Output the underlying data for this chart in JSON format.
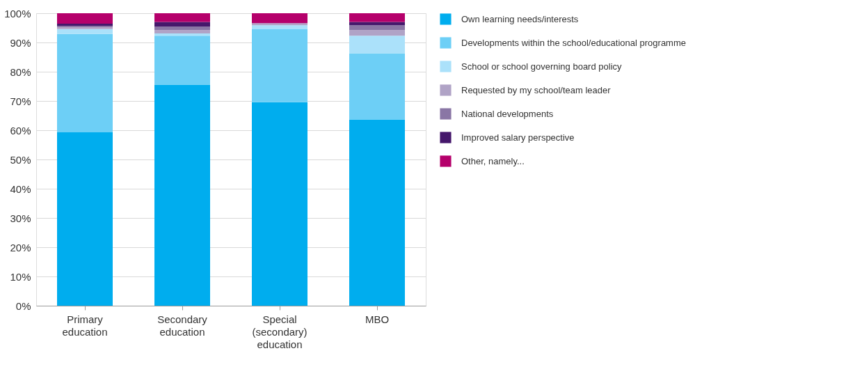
{
  "chart_data": {
    "type": "bar",
    "stacked": true,
    "categories": [
      "Primary education",
      "Secondary education",
      "Special (secondary) education",
      "MBO"
    ],
    "series": [
      {
        "name": "Own learning needs/interests",
        "color": "#00adee",
        "values": [
          59.3,
          75.6,
          69.6,
          63.7
        ]
      },
      {
        "name": "Developments within the school/educational programme",
        "color": "#6dcff6",
        "values": [
          33.6,
          16.7,
          24.9,
          22.6
        ]
      },
      {
        "name": "School or school governing board policy",
        "color": "#abe1fa",
        "values": [
          1.7,
          0.8,
          1.4,
          6.0
        ]
      },
      {
        "name": "Requested by my school/team leader",
        "color": "#b0a3c6",
        "values": [
          0.6,
          1.1,
          0.7,
          1.9
        ]
      },
      {
        "name": "National developments",
        "color": "#8a76a5",
        "values": [
          0.5,
          1.3,
          0,
          1.7
        ]
      },
      {
        "name": "Improved salary perspective",
        "color": "#45176b",
        "values": [
          0.7,
          1.5,
          0,
          1.1
        ]
      },
      {
        "name": "Other, namely...",
        "color": "#b5006b",
        "values": [
          3.6,
          3.0,
          3.4,
          3.0
        ]
      }
    ],
    "ylim": [
      0,
      100
    ],
    "yticks": [
      {
        "value": 0,
        "label": "0%"
      },
      {
        "value": 10,
        "label": "10%"
      },
      {
        "value": 20,
        "label": "20%"
      },
      {
        "value": 30,
        "label": "30%"
      },
      {
        "value": 40,
        "label": "40%"
      },
      {
        "value": 50,
        "label": "50%"
      },
      {
        "value": 60,
        "label": "60%"
      },
      {
        "value": 70,
        "label": "70%"
      },
      {
        "value": 80,
        "label": "80%"
      },
      {
        "value": 90,
        "label": "90%"
      },
      {
        "value": 100,
        "label": "100%"
      }
    ],
    "grid": "y",
    "legend": "top right"
  }
}
